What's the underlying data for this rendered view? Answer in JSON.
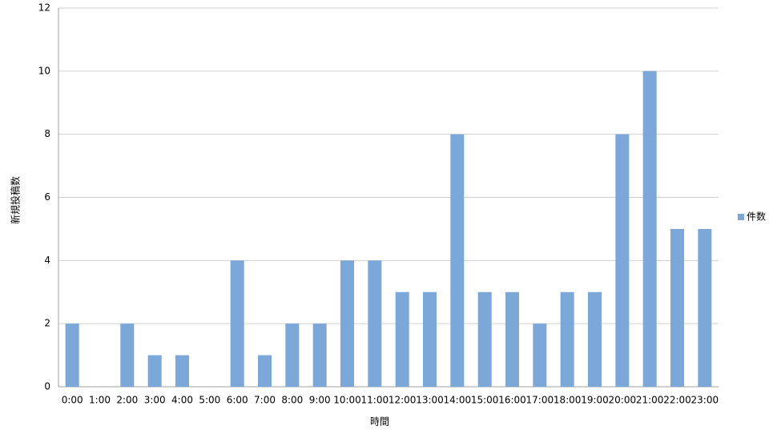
{
  "chart_data": {
    "type": "bar",
    "x_label": "時間",
    "y_label": "新規投稿数",
    "categories": [
      "0:00",
      "1:00",
      "2:00",
      "3:00",
      "4:00",
      "5:00",
      "6:00",
      "7:00",
      "8:00",
      "9:00",
      "10:00",
      "11:00",
      "12:00",
      "13:00",
      "14:00",
      "15:00",
      "16:00",
      "17:00",
      "18:00",
      "19:00",
      "20:00",
      "21:00",
      "22:00",
      "23:00"
    ],
    "series": [
      {
        "name": "件数",
        "color": "#7ba7d9",
        "values": [
          2,
          0,
          2,
          1,
          1,
          0,
          4,
          1,
          2,
          2,
          4,
          4,
          3,
          3,
          8,
          3,
          3,
          2,
          3,
          3,
          8,
          10,
          5,
          5
        ]
      }
    ],
    "ylim": [
      0,
      12
    ],
    "yticks": [
      0,
      2,
      4,
      6,
      8,
      10,
      12
    ],
    "grid": true,
    "legend": "right"
  }
}
